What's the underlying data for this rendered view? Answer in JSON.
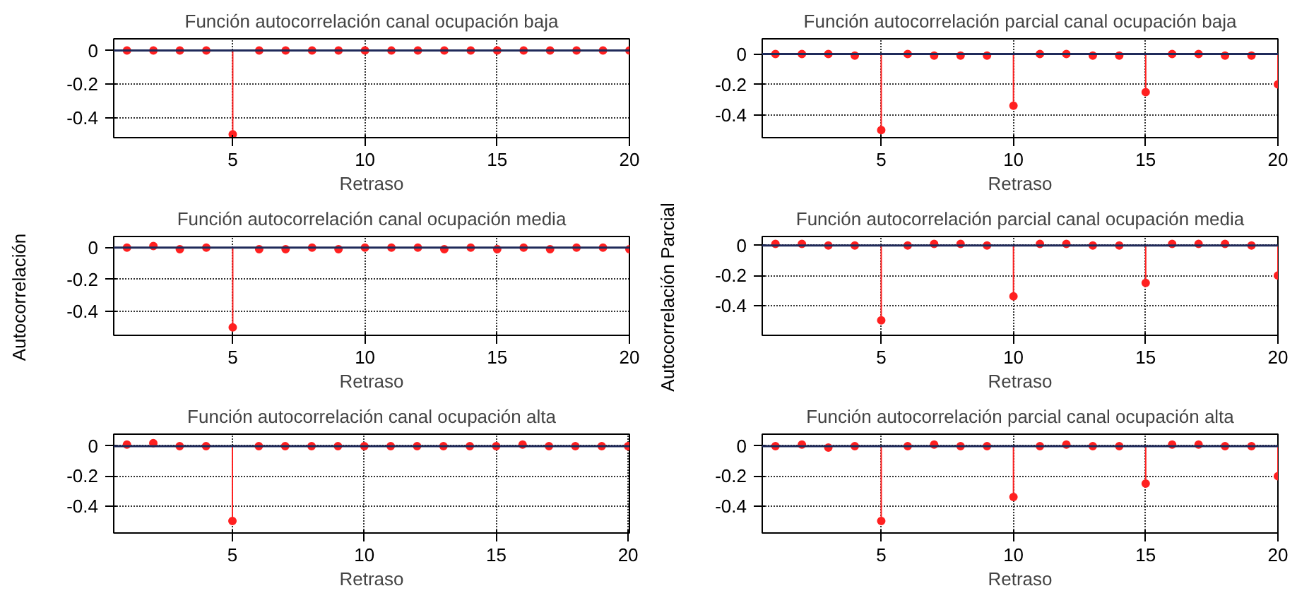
{
  "chart_data": [
    {
      "type": "lollipop",
      "title": "Función autocorrelación canal ocupación baja",
      "xlabel": "Retraso",
      "x": [
        1,
        2,
        3,
        4,
        5,
        6,
        7,
        8,
        9,
        10,
        11,
        12,
        13,
        14,
        15,
        16,
        17,
        18,
        19,
        20
      ],
      "values": [
        0,
        0,
        0,
        0,
        -0.5,
        0,
        0,
        0,
        0,
        0,
        0,
        0,
        0,
        0,
        0,
        0,
        0,
        0,
        0,
        0
      ],
      "color": "#ff2020",
      "marker": "circle",
      "xlim": [
        0.5,
        20
      ],
      "ylim": [
        -0.52,
        0.07
      ],
      "xticks": [
        5,
        10,
        15,
        20
      ],
      "yticks": [
        0,
        -0.2,
        -0.4
      ],
      "grid": true,
      "ref_lines": [
        {
          "axis": "y",
          "value": 0,
          "color": "#1f2a5a"
        }
      ]
    },
    {
      "type": "lollipop",
      "title": "Función autocorrelación parcial canal ocupación baja",
      "xlabel": "Retraso",
      "x": [
        1,
        2,
        3,
        4,
        5,
        6,
        7,
        8,
        9,
        10,
        11,
        12,
        13,
        14,
        15,
        16,
        17,
        18,
        19,
        20
      ],
      "values": [
        0,
        0,
        0,
        -0.01,
        -0.5,
        0,
        -0.01,
        -0.01,
        -0.01,
        -0.34,
        0,
        0,
        -0.01,
        -0.01,
        -0.25,
        0,
        0,
        -0.01,
        -0.01,
        -0.2
      ],
      "color": "#ff2020",
      "marker": "circle",
      "xlim": [
        0.5,
        20
      ],
      "ylim": [
        -0.55,
        0.1
      ],
      "xticks": [
        5,
        10,
        15,
        20
      ],
      "yticks": [
        0,
        -0.2,
        -0.4
      ],
      "grid": true,
      "ref_lines": [
        {
          "axis": "y",
          "value": 0,
          "color": "#1f2a5a"
        }
      ]
    },
    {
      "type": "lollipop",
      "title": "Función autocorrelación canal ocupación media",
      "xlabel": "Retraso",
      "ylabel": "Autocorrelación",
      "x": [
        1,
        2,
        3,
        4,
        5,
        6,
        7,
        8,
        9,
        10,
        11,
        12,
        13,
        14,
        15,
        16,
        17,
        18,
        19,
        20
      ],
      "values": [
        0,
        0.01,
        -0.01,
        0,
        -0.5,
        -0.01,
        -0.01,
        0,
        -0.01,
        0,
        0,
        0,
        -0.01,
        0,
        -0.01,
        0,
        -0.01,
        0,
        0,
        -0.01
      ],
      "color": "#ff2020",
      "marker": "circle",
      "xlim": [
        0.5,
        20
      ],
      "ylim": [
        -0.55,
        0.07
      ],
      "xticks": [
        5,
        10,
        15,
        20
      ],
      "yticks": [
        0,
        -0.2,
        -0.4
      ],
      "grid": true,
      "ref_lines": [
        {
          "axis": "y",
          "value": 0,
          "color": "#1f2a5a"
        }
      ]
    },
    {
      "type": "lollipop",
      "title": "Función autocorrelación parcial canal ocupación media",
      "xlabel": "Retraso",
      "ylabel": "Autocorrelación Parcial",
      "x": [
        1,
        2,
        3,
        4,
        5,
        6,
        7,
        8,
        9,
        10,
        11,
        12,
        13,
        14,
        15,
        16,
        17,
        18,
        19,
        20
      ],
      "values": [
        0.01,
        0.01,
        0,
        0,
        -0.5,
        0,
        0.01,
        0.01,
        0,
        -0.34,
        0.01,
        0.01,
        0,
        0,
        -0.25,
        0.01,
        0.01,
        0.01,
        0,
        -0.2
      ],
      "color": "#ff2020",
      "marker": "circle",
      "xlim": [
        0.5,
        20
      ],
      "ylim": [
        -0.6,
        0.06
      ],
      "xticks": [
        5,
        10,
        15,
        20
      ],
      "yticks": [
        0,
        -0.2,
        -0.4
      ],
      "grid": true,
      "ref_lines": [
        {
          "axis": "y",
          "value": 0,
          "color": "#1f2a5a"
        }
      ]
    },
    {
      "type": "lollipop",
      "title": "Función autocorrelación canal ocupación alta",
      "xlabel": "Retraso",
      "x": [
        1,
        2,
        3,
        4,
        5,
        6,
        7,
        8,
        9,
        10,
        11,
        12,
        13,
        14,
        15,
        16,
        17,
        18,
        19,
        20
      ],
      "values": [
        0.01,
        0.02,
        0,
        0,
        -0.5,
        0,
        0,
        0,
        0,
        0,
        0,
        0,
        0,
        0,
        0,
        0.01,
        0,
        0,
        0,
        0
      ],
      "color": "#ff2020",
      "marker": "circle",
      "xlim": [
        0.5,
        20.05
      ],
      "ylim": [
        -0.58,
        0.08
      ],
      "xticks": [
        5,
        10,
        15,
        20
      ],
      "yticks": [
        0,
        -0.2,
        -0.4
      ],
      "grid": true,
      "ref_lines": [
        {
          "axis": "y",
          "value": 0,
          "color": "#1f2a5a"
        }
      ]
    },
    {
      "type": "lollipop",
      "title": "Función autocorrelación parcial canal ocupación alta",
      "xlabel": "Retraso",
      "x": [
        1,
        2,
        3,
        4,
        5,
        6,
        7,
        8,
        9,
        10,
        11,
        12,
        13,
        14,
        15,
        16,
        17,
        18,
        19,
        20
      ],
      "values": [
        0,
        0.01,
        -0.01,
        0,
        -0.5,
        0,
        0.01,
        0,
        0,
        -0.34,
        0,
        0.01,
        0,
        0,
        -0.25,
        0.01,
        0.01,
        0,
        0,
        -0.2
      ],
      "color": "#ff2020",
      "marker": "circle",
      "xlim": [
        0.5,
        20
      ],
      "ylim": [
        -0.58,
        0.08
      ],
      "xticks": [
        5,
        10,
        15,
        20
      ],
      "yticks": [
        0,
        -0.2,
        -0.4
      ],
      "grid": true,
      "ref_lines": [
        {
          "axis": "y",
          "value": 0,
          "color": "#1f2a5a"
        }
      ]
    }
  ]
}
